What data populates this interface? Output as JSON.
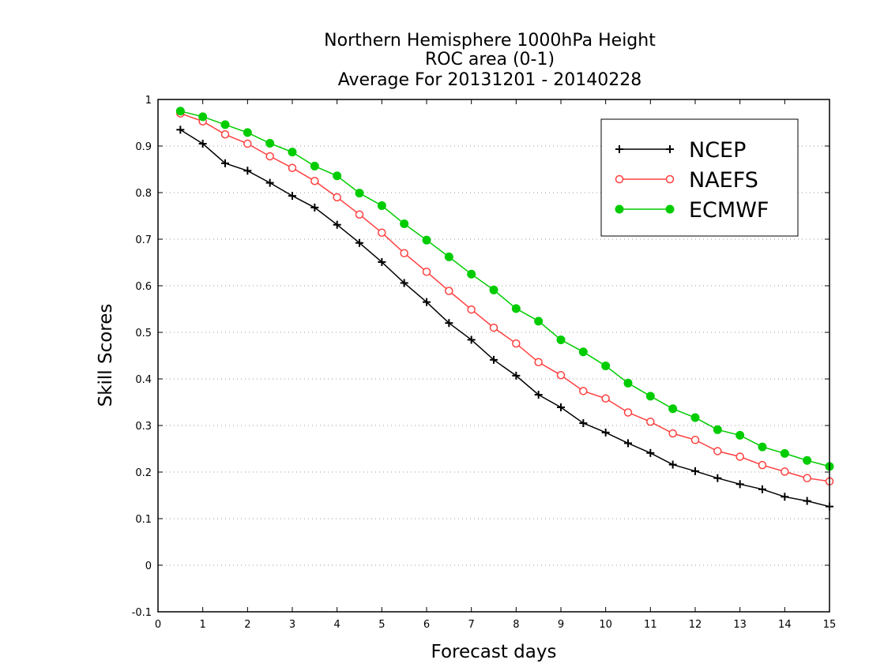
{
  "chart_data": {
    "type": "line",
    "title": "Northern Hemisphere 1000hPa Height",
    "subtitle": "ROC area (0-1)",
    "subtitle2": "Average For 20131201 - 20140228",
    "xlabel": "Forecast days",
    "ylabel": "Skill Scores",
    "xlim": [
      0,
      15
    ],
    "ylim": [
      -0.1,
      1
    ],
    "xticks": [
      "0",
      "1",
      "2",
      "3",
      "4",
      "5",
      "6",
      "7",
      "8",
      "9",
      "10",
      "11",
      "12",
      "13",
      "14",
      "15"
    ],
    "yticks": [
      "-0.1",
      "0",
      "0.1",
      "0.2",
      "0.3",
      "0.4",
      "0.5",
      "0.6",
      "0.7",
      "0.8",
      "0.9",
      "1"
    ],
    "grid": "horizontal-dotted",
    "legend_position": "top-right",
    "x": [
      0.5,
      1,
      1.5,
      2,
      2.5,
      3,
      3.5,
      4,
      4.5,
      5,
      5.5,
      6,
      6.5,
      7,
      7.5,
      8,
      8.5,
      9,
      9.5,
      10,
      10.5,
      11,
      11.5,
      12,
      12.5,
      13,
      13.5,
      14,
      14.5,
      15
    ],
    "series": [
      {
        "name": "NCEP",
        "color": "#000000",
        "marker": "plus",
        "values": [
          0.935,
          0.905,
          0.863,
          0.847,
          0.821,
          0.793,
          0.768,
          0.731,
          0.692,
          0.651,
          0.606,
          0.565,
          0.52,
          0.484,
          0.441,
          0.407,
          0.366,
          0.339,
          0.305,
          0.285,
          0.262,
          0.241,
          0.216,
          0.202,
          0.187,
          0.174,
          0.163,
          0.147,
          0.138,
          0.126
        ]
      },
      {
        "name": "NAEFS",
        "color": "#ff4040",
        "marker": "open-circle",
        "values": [
          0.97,
          0.953,
          0.925,
          0.905,
          0.878,
          0.853,
          0.825,
          0.79,
          0.753,
          0.714,
          0.67,
          0.63,
          0.589,
          0.549,
          0.51,
          0.476,
          0.436,
          0.408,
          0.374,
          0.358,
          0.328,
          0.308,
          0.283,
          0.269,
          0.245,
          0.233,
          0.215,
          0.201,
          0.187,
          0.18
        ]
      },
      {
        "name": "ECMWF",
        "color": "#00cc00",
        "marker": "filled-circle",
        "values": [
          0.975,
          0.963,
          0.946,
          0.929,
          0.906,
          0.887,
          0.857,
          0.836,
          0.799,
          0.772,
          0.733,
          0.698,
          0.662,
          0.625,
          0.591,
          0.551,
          0.524,
          0.484,
          0.458,
          0.428,
          0.391,
          0.363,
          0.336,
          0.317,
          0.291,
          0.279,
          0.254,
          0.24,
          0.225,
          0.212
        ]
      }
    ]
  }
}
